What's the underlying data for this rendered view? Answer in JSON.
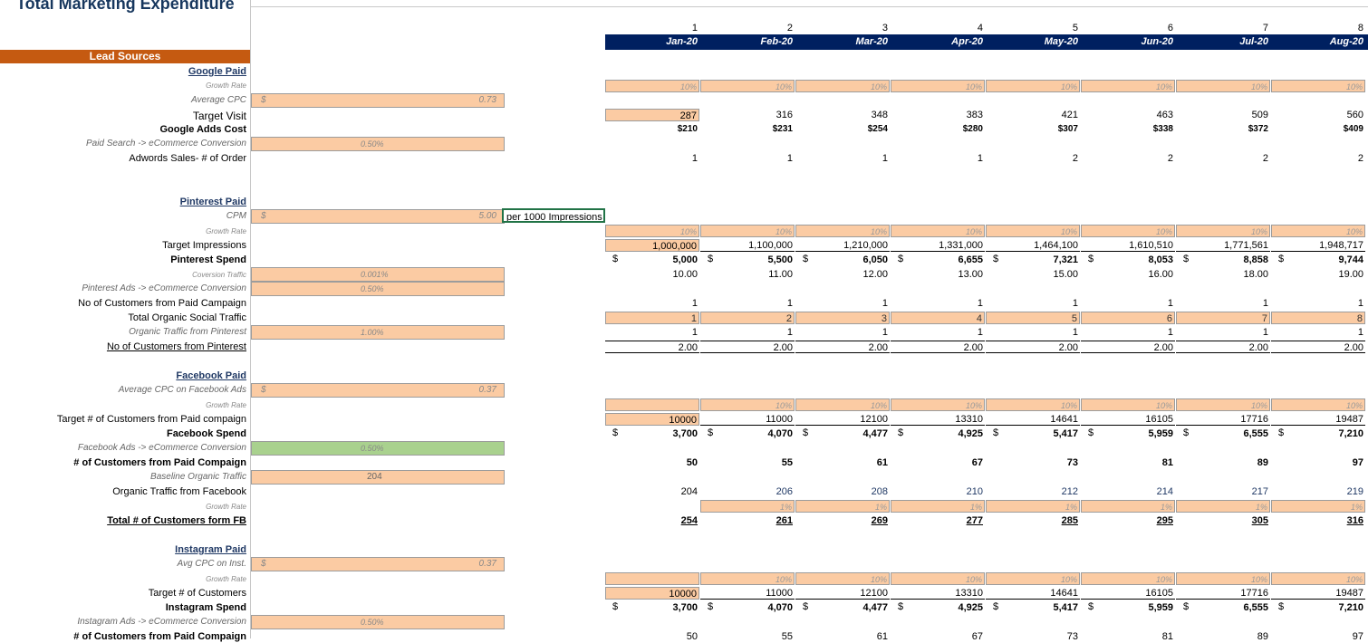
{
  "title": "Total Marketing Expenditure",
  "lead_sources": "Lead Sources",
  "indices": [
    "1",
    "2",
    "3",
    "4",
    "5",
    "6",
    "7",
    "8"
  ],
  "months": [
    "Jan-20",
    "Feb-20",
    "Mar-20",
    "Apr-20",
    "May-20",
    "Jun-20",
    "Jul-20",
    "Aug-20"
  ],
  "google": {
    "header": "Google Paid",
    "growth_label": "Growth Rate",
    "cpc_label": "Average CPC",
    "cpc_currency": "$",
    "cpc_value": "0.73",
    "target_label": "Target Visit",
    "cost_label": "Google Adds Cost",
    "conv_label": "Paid Search -> eCommerce Conversion",
    "conv_value": "0.50%",
    "orders_label": "Adwords Sales- # of Order",
    "growth": [
      "10%",
      "10%",
      "10%",
      "10%",
      "10%",
      "10%",
      "10%",
      "10%"
    ],
    "target": [
      "287",
      "316",
      "348",
      "383",
      "421",
      "463",
      "509",
      "560"
    ],
    "cost": [
      "$210",
      "$231",
      "$254",
      "$280",
      "$307",
      "$338",
      "$372",
      "$409"
    ],
    "orders": [
      "1",
      "1",
      "1",
      "1",
      "2",
      "2",
      "2",
      "2"
    ]
  },
  "pinterest": {
    "header": "Pinterest Paid",
    "cpm_label": "CPM",
    "cpm_currency": "$",
    "cpm_value": "5.00",
    "cpm_note": "per 1000 Impressions",
    "growth_label": "Growth Rate",
    "impr_label": "Target Impressions",
    "spend_label": "Pinterest Spend",
    "traffic_label": "Coversion Traffic",
    "traffic_value": "0.001%",
    "conv_label": "Pinterest Ads -> eCommerce Conversion",
    "conv_value": "0.50%",
    "cust_paid_label": "No of Customers from Paid Campaign",
    "organic_label": "Total Organic Social Traffic",
    "organic_pct_label": "Organic Traffic from Pinterest",
    "organic_pct_value": "1.00%",
    "cust_total_label": "No of Customers from Pinterest",
    "growth": [
      "10%",
      "10%",
      "10%",
      "10%",
      "10%",
      "10%",
      "10%",
      "10%"
    ],
    "impressions": [
      "1,000,000",
      "1,100,000",
      "1,210,000",
      "1,331,000",
      "1,464,100",
      "1,610,510",
      "1,771,561",
      "1,948,717"
    ],
    "spend": [
      "5,000",
      "5,500",
      "6,050",
      "6,655",
      "7,321",
      "8,053",
      "8,858",
      "9,744"
    ],
    "traffic": [
      "10.00",
      "11.00",
      "12.00",
      "13.00",
      "15.00",
      "16.00",
      "18.00",
      "19.00"
    ],
    "cust_paid": [
      "1",
      "1",
      "1",
      "1",
      "1",
      "1",
      "1",
      "1"
    ],
    "organic": [
      "1",
      "2",
      "3",
      "4",
      "5",
      "6",
      "7",
      "8"
    ],
    "organic_cust": [
      "1",
      "1",
      "1",
      "1",
      "1",
      "1",
      "1",
      "1"
    ],
    "cust_total": [
      "2.00",
      "2.00",
      "2.00",
      "2.00",
      "2.00",
      "2.00",
      "2.00",
      "2.00"
    ]
  },
  "facebook": {
    "header": "Facebook Paid",
    "cpc_label": "Average CPC on Facebook Ads",
    "cpc_currency": "$",
    "cpc_value": "0.37",
    "growth_label": "Growth Rate",
    "target_label": "Target # of Customers  from Paid compaign",
    "spend_label": "Facebook Spend",
    "conv_label": "Facebook Ads -> eCommerce Conversion",
    "conv_value": "0.50%",
    "cust_paid_label": "# of Customers from Paid Compaign",
    "baseline_label": "Baseline Organic Traffic",
    "baseline_value": "204",
    "organic_label": "Organic Traffic from Facebook",
    "organic_growth_label": "Growth Rate",
    "total_label": "Total # of Customers form FB",
    "growth": [
      "",
      "10%",
      "10%",
      "10%",
      "10%",
      "10%",
      "10%",
      "10%"
    ],
    "target": [
      "10000",
      "11000",
      "12100",
      "13310",
      "14641",
      "16105",
      "17716",
      "19487"
    ],
    "spend": [
      "3,700",
      "4,070",
      "4,477",
      "4,925",
      "5,417",
      "5,959",
      "6,555",
      "7,210"
    ],
    "cust_paid": [
      "50",
      "55",
      "61",
      "67",
      "73",
      "81",
      "89",
      "97"
    ],
    "organic": [
      "204",
      "206",
      "208",
      "210",
      "212",
      "214",
      "217",
      "219"
    ],
    "organic_growth": [
      "",
      "1%",
      "1%",
      "1%",
      "1%",
      "1%",
      "1%",
      "1%"
    ],
    "total": [
      "254",
      "261",
      "269",
      "277",
      "285",
      "295",
      "305",
      "316"
    ]
  },
  "instagram": {
    "header": "Instagram Paid",
    "cpc_label": "Avg CPC on Inst.",
    "cpc_currency": "$",
    "cpc_value": "0.37",
    "growth_label": "Growth Rate",
    "target_label": "Target # of Customers",
    "spend_label": "Instagram Spend",
    "conv_label": "Instagram Ads -> eCommerce Conversion",
    "conv_value": "0.50%",
    "cust_paid_label": "# of Customers from Paid Compaign",
    "growth": [
      "",
      "10%",
      "10%",
      "10%",
      "10%",
      "10%",
      "10%",
      "10%"
    ],
    "target": [
      "10000",
      "11000",
      "12100",
      "13310",
      "14641",
      "16105",
      "17716",
      "19487"
    ],
    "spend": [
      "3,700",
      "4,070",
      "4,477",
      "4,925",
      "5,417",
      "5,959",
      "6,555",
      "7,210"
    ],
    "cust_paid": [
      "50",
      "55",
      "61",
      "67",
      "73",
      "81",
      "89",
      "97"
    ]
  },
  "currency_symbol": "$"
}
